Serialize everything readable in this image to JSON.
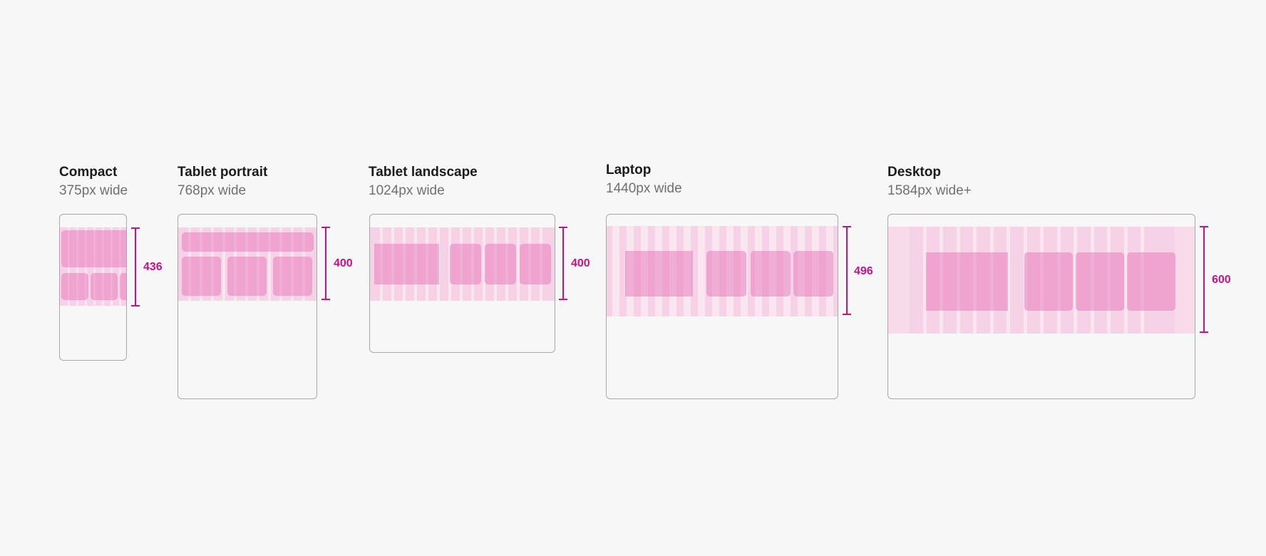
{
  "breakpoints": [
    {
      "name": "Compact",
      "width_label": "375px wide",
      "height_label": "436"
    },
    {
      "name": "Tablet portrait",
      "width_label": "768px wide",
      "height_label": "400"
    },
    {
      "name": "Tablet landscape",
      "width_label": "1024px wide",
      "height_label": "400"
    },
    {
      "name": "Laptop",
      "width_label": "1440px wide",
      "height_label": "496"
    },
    {
      "name": "Desktop",
      "width_label": "1584px wide+",
      "height_label": "600"
    }
  ],
  "colors": {
    "background": "#f7f7f7",
    "measure_accent": "#c6118a",
    "band": "#f5d2e6",
    "block": "#e97ebe",
    "device_border": "#a9a9a9"
  }
}
